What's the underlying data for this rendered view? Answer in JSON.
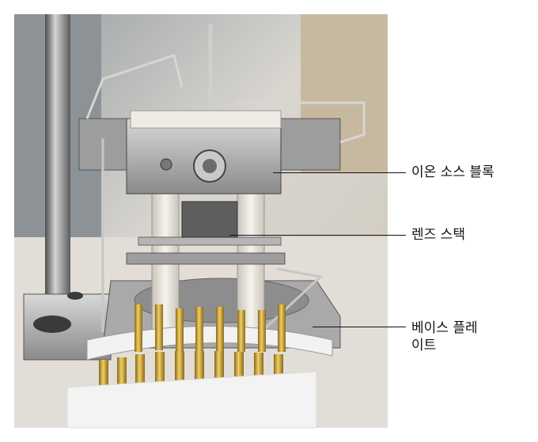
{
  "image_description_alt": "",
  "callouts": [
    {
      "label": "이온 소스 블록"
    },
    {
      "label": "렌즈 스택"
    },
    {
      "label": "베이스 플레",
      "label_line2": "이트"
    }
  ],
  "colors": {
    "background": "#ffffff",
    "label_text": "#111111",
    "metal_light": "#c8c8c8",
    "metal_dark": "#6e6e6e",
    "ceramic": "#f1ede6",
    "gold_pin": "#c9a132",
    "foam": "#f4f4f4"
  }
}
